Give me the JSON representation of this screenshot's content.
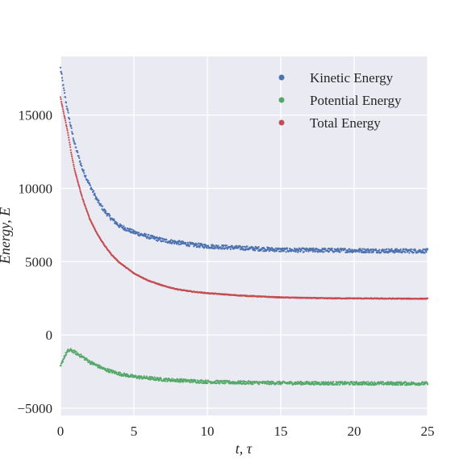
{
  "chart_data": {
    "type": "scatter",
    "title": "",
    "xlabel": "t, τ",
    "ylabel": "Energy, E",
    "xlim": [
      0,
      25
    ],
    "ylim": [
      -5500,
      19000
    ],
    "xticks": [
      0,
      5,
      10,
      15,
      20,
      25
    ],
    "yticks": [
      -5000,
      0,
      5000,
      10000,
      15000
    ],
    "grid": true,
    "legend_position": "top-right",
    "series": [
      {
        "name": "Kinetic Energy",
        "color": "#4c72b0",
        "x": [
          0,
          0.25,
          0.5,
          0.75,
          1,
          1.5,
          2,
          2.5,
          3,
          3.5,
          4,
          5,
          6,
          7,
          8,
          9,
          10,
          12,
          14,
          15,
          16,
          18,
          20,
          22,
          24,
          25
        ],
        "y": [
          18200,
          16600,
          15200,
          14000,
          12900,
          11300,
          10200,
          9200,
          8450,
          7900,
          7450,
          7000,
          6700,
          6450,
          6300,
          6150,
          6050,
          5950,
          5850,
          5800,
          5780,
          5780,
          5760,
          5740,
          5730,
          5730
        ]
      },
      {
        "name": "Potential Energy",
        "color": "#55a868",
        "x": [
          0,
          0.25,
          0.5,
          0.75,
          1,
          1.5,
          2,
          2.5,
          3,
          4,
          5,
          6,
          7,
          8,
          10,
          12,
          15,
          18,
          20,
          22,
          25
        ],
        "y": [
          -2200,
          -1500,
          -1100,
          -1050,
          -1200,
          -1500,
          -1850,
          -2100,
          -2350,
          -2650,
          -2850,
          -2950,
          -3050,
          -3100,
          -3200,
          -3250,
          -3280,
          -3300,
          -3300,
          -3310,
          -3320
        ]
      },
      {
        "name": "Total Energy",
        "color": "#c44e52",
        "x": [
          0,
          0.25,
          0.5,
          0.75,
          1,
          1.5,
          2,
          2.5,
          3,
          3.5,
          4,
          5,
          6,
          7,
          8,
          9,
          10,
          12,
          14,
          15,
          16,
          18,
          20,
          22,
          24,
          25
        ],
        "y": [
          16200,
          15000,
          13800,
          12300,
          11100,
          9300,
          7900,
          6900,
          6100,
          5450,
          4950,
          4200,
          3700,
          3350,
          3100,
          2950,
          2850,
          2700,
          2600,
          2560,
          2540,
          2500,
          2490,
          2480,
          2470,
          2470
        ]
      }
    ]
  }
}
